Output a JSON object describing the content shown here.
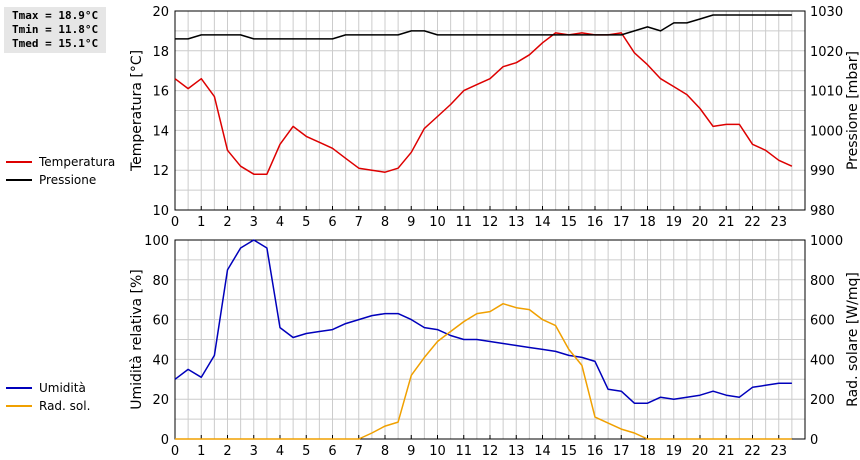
{
  "stats": {
    "tmax": "Tmax = 18.9°C",
    "tmin": "Tmin = 11.8°C",
    "tmed": "Tmed = 15.1°C"
  },
  "colors": {
    "temperatura": "#dd0000",
    "pressione": "#000000",
    "umidita": "#0000bb",
    "rad_sol": "#f0a000",
    "grid": "#cccccc"
  },
  "legend_top": [
    {
      "label": "Temperatura",
      "color": "#dd0000"
    },
    {
      "label": "Pressione",
      "color": "#000000"
    }
  ],
  "legend_bottom": [
    {
      "label": "Umidità",
      "color": "#0000bb"
    },
    {
      "label": "Rad. sol.",
      "color": "#f0a000"
    }
  ],
  "chart_data": [
    {
      "type": "line",
      "ylabel": "Temperatura [°C]",
      "y2label": "Pressione [mbar]",
      "xlim": [
        0,
        24
      ],
      "ylim": [
        10,
        20
      ],
      "y2lim": [
        980,
        1030
      ],
      "x_ticks": [
        "0",
        "1",
        "2",
        "3",
        "4",
        "5",
        "6",
        "7",
        "8",
        "9",
        "10",
        "11",
        "12",
        "13",
        "14",
        "15",
        "16",
        "17",
        "18",
        "19",
        "20",
        "21",
        "22",
        "23"
      ],
      "y_ticks": [
        "10",
        "12",
        "14",
        "16",
        "18",
        "20"
      ],
      "y2_ticks": [
        "980",
        "990",
        "1000",
        "1010",
        "1020",
        "1030"
      ],
      "grid": true,
      "series": [
        {
          "name": "Temperatura",
          "axis": "left",
          "color": "#dd0000",
          "x": [
            0,
            0.5,
            1,
            1.5,
            2,
            2.5,
            3,
            3.5,
            4,
            4.5,
            5,
            5.5,
            6,
            6.5,
            7,
            7.5,
            8,
            8.5,
            9,
            9.5,
            10,
            10.5,
            11,
            11.5,
            12,
            12.5,
            13,
            13.5,
            14,
            14.5,
            15,
            15.5,
            16,
            16.5,
            17,
            17.5,
            18,
            18.5,
            19,
            19.5,
            20,
            20.5,
            21,
            21.5,
            22,
            22.5,
            23,
            23.5
          ],
          "y": [
            16.6,
            16.1,
            16.6,
            15.7,
            13.0,
            12.2,
            11.8,
            11.8,
            13.3,
            14.2,
            13.7,
            13.4,
            13.1,
            12.6,
            12.1,
            12.0,
            11.9,
            12.1,
            12.9,
            14.1,
            14.7,
            15.3,
            16.0,
            16.3,
            16.6,
            17.2,
            17.4,
            17.8,
            18.4,
            18.9,
            18.8,
            18.9,
            18.8,
            18.8,
            18.9,
            17.9,
            17.3,
            16.6,
            16.2,
            15.8,
            15.1,
            14.2,
            14.3,
            14.3,
            13.3,
            13.0,
            12.5,
            12.2
          ]
        },
        {
          "name": "Pressione",
          "axis": "right",
          "color": "#000000",
          "x": [
            0,
            0.5,
            1,
            1.5,
            2,
            2.5,
            3,
            3.5,
            4,
            4.5,
            5,
            5.5,
            6,
            6.5,
            7,
            7.5,
            8,
            8.5,
            9,
            9.5,
            10,
            10.5,
            11,
            11.5,
            12,
            12.5,
            13,
            13.5,
            14,
            14.5,
            15,
            15.5,
            16,
            16.5,
            17,
            17.5,
            18,
            18.5,
            19,
            19.5,
            20,
            20.5,
            21,
            21.5,
            22,
            22.5,
            23,
            23.5
          ],
          "y": [
            1023,
            1023,
            1024,
            1024,
            1024,
            1024,
            1023,
            1023,
            1023,
            1023,
            1023,
            1023,
            1023,
            1024,
            1024,
            1024,
            1024,
            1024,
            1025,
            1025,
            1024,
            1024,
            1024,
            1024,
            1024,
            1024,
            1024,
            1024,
            1024,
            1024,
            1024,
            1024,
            1024,
            1024,
            1024,
            1025,
            1026,
            1025,
            1027,
            1027,
            1028,
            1029,
            1029,
            1029,
            1029,
            1029,
            1029,
            1029
          ]
        }
      ]
    },
    {
      "type": "line",
      "ylabel": "Umidità relativa [%]",
      "y2label": "Rad. solare [W/mq]",
      "xlim": [
        0,
        24
      ],
      "ylim": [
        0,
        100
      ],
      "y2lim": [
        0,
        1000
      ],
      "x_ticks": [
        "0",
        "1",
        "2",
        "3",
        "4",
        "5",
        "6",
        "7",
        "8",
        "9",
        "10",
        "11",
        "12",
        "13",
        "14",
        "15",
        "16",
        "17",
        "18",
        "19",
        "20",
        "21",
        "22",
        "23"
      ],
      "y_ticks": [
        "0",
        "20",
        "40",
        "60",
        "80",
        "100"
      ],
      "y2_ticks": [
        "0",
        "200",
        "400",
        "600",
        "800",
        "1000"
      ],
      "grid": true,
      "series": [
        {
          "name": "Umidità",
          "axis": "left",
          "color": "#0000bb",
          "x": [
            0,
            0.5,
            1,
            1.5,
            2,
            2.5,
            3,
            3.5,
            4,
            4.5,
            5,
            5.5,
            6,
            6.5,
            7,
            7.5,
            8,
            8.5,
            9,
            9.5,
            10,
            10.5,
            11,
            11.5,
            12,
            12.5,
            13,
            13.5,
            14,
            14.5,
            15,
            15.5,
            16,
            16.5,
            17,
            17.5,
            18,
            18.5,
            19,
            19.5,
            20,
            20.5,
            21,
            21.5,
            22,
            22.5,
            23,
            23.5
          ],
          "y": [
            30,
            35,
            31,
            42,
            85,
            96,
            100,
            96,
            56,
            51,
            53,
            54,
            55,
            58,
            60,
            62,
            63,
            63,
            60,
            56,
            55,
            52,
            50,
            50,
            49,
            48,
            47,
            46,
            45,
            44,
            42,
            41,
            39,
            25,
            24,
            18,
            18,
            21,
            20,
            21,
            22,
            24,
            22,
            21,
            26,
            27,
            28,
            28
          ]
        },
        {
          "name": "Rad. sol.",
          "axis": "right",
          "color": "#f0a000",
          "x": [
            0,
            0.5,
            1,
            1.5,
            2,
            2.5,
            3,
            3.5,
            4,
            4.5,
            5,
            5.5,
            6,
            6.5,
            7,
            7.5,
            8,
            8.5,
            9,
            9.5,
            10,
            10.5,
            11,
            11.5,
            12,
            12.5,
            13,
            13.5,
            14,
            14.5,
            15,
            15.5,
            16,
            16.5,
            17,
            17.5,
            18,
            18.5,
            19,
            19.5,
            20,
            20.5,
            21,
            21.5,
            22,
            22.5,
            23,
            23.5
          ],
          "y": [
            0,
            0,
            0,
            0,
            0,
            0,
            0,
            0,
            0,
            0,
            0,
            0,
            0,
            0,
            0,
            30,
            65,
            85,
            320,
            410,
            490,
            540,
            590,
            630,
            640,
            680,
            660,
            650,
            600,
            570,
            450,
            370,
            110,
            80,
            50,
            30,
            0,
            0,
            0,
            0,
            0,
            0,
            0,
            0,
            0,
            0,
            0,
            0
          ]
        }
      ]
    }
  ]
}
